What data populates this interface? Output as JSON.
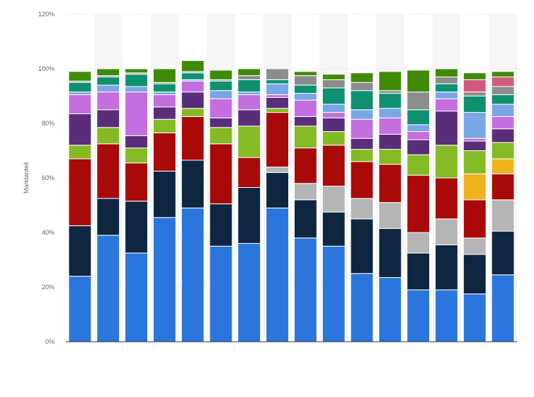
{
  "chart_data": {
    "type": "bar",
    "stacked": true,
    "ylabel": "Marktanteil",
    "xlabel": "",
    "ylim": [
      0,
      120
    ],
    "yticks": [
      "0%",
      "20%",
      "40%",
      "60%",
      "80%",
      "100%",
      "120%"
    ],
    "ytick_values": [
      0,
      20,
      40,
      60,
      80,
      100,
      120
    ],
    "grid": true,
    "alternating_column_shading": true,
    "legend": "none",
    "bar_count": 16,
    "series": [
      {
        "color": "#2a76dd",
        "values": [
          24,
          39,
          32.5,
          45.5,
          49,
          35,
          36,
          49,
          38,
          35,
          25,
          23.5,
          19,
          19,
          17.5,
          24.5
        ]
      },
      {
        "color": "#0f2640",
        "values": [
          18.5,
          13.5,
          19,
          17,
          17.5,
          15.5,
          20.5,
          13,
          14,
          12.5,
          20,
          18,
          13.5,
          16.5,
          14.5,
          16
        ]
      },
      {
        "color": "#b5b5b5",
        "values": [
          0,
          0,
          0,
          0,
          0,
          0,
          0,
          2,
          6,
          9.5,
          7.5,
          9.5,
          7.5,
          9.5,
          6,
          11.5
        ]
      },
      {
        "color": "#a80a0a",
        "values": [
          24.5,
          20,
          14,
          14,
          16,
          22,
          11,
          20,
          13,
          15,
          13.5,
          14,
          21,
          15,
          14,
          9.5
        ]
      },
      {
        "color": "#f0b31f",
        "values": [
          0,
          0,
          0,
          0,
          0,
          0,
          0,
          0,
          0,
          0,
          0,
          0,
          0,
          0,
          9.5,
          5.5
        ]
      },
      {
        "color": "#84bb24",
        "values": [
          5,
          6,
          5.5,
          5,
          3,
          6,
          11.5,
          1.5,
          8,
          5,
          4.5,
          5.5,
          7.5,
          12,
          8.5,
          6
        ]
      },
      {
        "color": "#5a2d7a",
        "values": [
          11.5,
          6.5,
          4.5,
          4.5,
          6,
          3.5,
          6,
          4,
          3.5,
          5,
          4,
          5.5,
          5.5,
          12.5,
          3.5,
          5
        ]
      },
      {
        "color": "#c46ee0",
        "values": [
          7,
          6.5,
          16,
          4.5,
          4,
          7,
          5.5,
          1,
          6,
          2,
          7,
          6,
          3,
          4.5,
          1,
          4.5
        ]
      },
      {
        "color": "#79a6e6",
        "values": [
          1,
          2.5,
          2,
          1,
          0.5,
          3,
          1,
          4,
          2.5,
          3,
          3.5,
          3.5,
          2.5,
          2.5,
          9.5,
          4.5
        ]
      },
      {
        "color": "#0f9070",
        "values": [
          3.5,
          3,
          4.5,
          3,
          2.5,
          3.5,
          4.5,
          1.5,
          3,
          6,
          7,
          5.5,
          5.5,
          3,
          6,
          3.5
        ]
      },
      {
        "color": "#8c8c8c",
        "values": [
          0.5,
          0.5,
          0.5,
          0.5,
          0.5,
          0.5,
          1.5,
          4,
          3.5,
          3,
          3,
          1,
          6.5,
          2.5,
          1.5,
          3
        ]
      },
      {
        "color": "#cf5b7c",
        "values": [
          0,
          0,
          0,
          0,
          0,
          0,
          0,
          0,
          0,
          0,
          0,
          0,
          0,
          0,
          4.5,
          3.5
        ]
      },
      {
        "color": "#3f8a06",
        "values": [
          3.5,
          2.5,
          1.5,
          5,
          4,
          3.5,
          2.5,
          0,
          1.5,
          2,
          3.5,
          7,
          8,
          3,
          2.5,
          2
        ]
      }
    ]
  }
}
